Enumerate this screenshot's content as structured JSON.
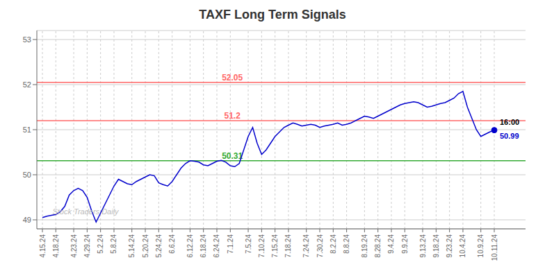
{
  "chart_data": {
    "type": "line",
    "title": "TAXF Long Term Signals",
    "categories": [
      "4.15.24",
      null,
      null,
      "4.18.24",
      null,
      null,
      null,
      "4.23.24",
      null,
      null,
      "4.29.24",
      null,
      null,
      "5.2.24",
      null,
      null,
      "5.8.24",
      null,
      null,
      null,
      "5.14.24",
      null,
      null,
      "5.20.24",
      null,
      null,
      "5.24.24",
      null,
      null,
      "6.6.24",
      null,
      null,
      null,
      "6.12.24",
      null,
      null,
      "6.18.24",
      null,
      null,
      "6.24.24",
      null,
      null,
      "7.1.24",
      null,
      null,
      null,
      "7.5.24",
      null,
      null,
      "7.10.24",
      null,
      null,
      "7.15.24",
      null,
      null,
      "7.18.24",
      null,
      null,
      null,
      "7.24.24",
      null,
      null,
      "7.30.24",
      null,
      null,
      "8.2.24",
      null,
      null,
      "8.8.24",
      null,
      null,
      null,
      "8.19.24",
      null,
      null,
      "8.28.24",
      null,
      null,
      "9.4.24",
      null,
      null,
      "9.9.24",
      null,
      null,
      null,
      "9.13.24",
      null,
      null,
      "9.18.24",
      null,
      null,
      "9.23.24",
      null,
      null,
      "10.4.24",
      null,
      null,
      null,
      "10.9.24",
      null,
      null,
      "10.11.24"
    ],
    "series": [
      {
        "type": "line",
        "color": "#0000cc",
        "line_style": "solid",
        "values": [
          49.05,
          49.08,
          49.1,
          49.12,
          49.18,
          49.3,
          49.55,
          49.65,
          49.7,
          49.65,
          49.5,
          49.2,
          48.95,
          49.15,
          49.35,
          49.55,
          49.75,
          49.9,
          49.85,
          49.8,
          49.78,
          49.85,
          49.9,
          49.95,
          50.0,
          49.98,
          49.82,
          49.78,
          49.75,
          49.85,
          50.0,
          50.15,
          50.25,
          50.31,
          50.3,
          50.28,
          50.22,
          50.2,
          50.25,
          50.3,
          50.32,
          50.28,
          50.2,
          50.18,
          50.25,
          50.55,
          50.85,
          51.05,
          50.7,
          50.45,
          50.55,
          50.7,
          50.85,
          50.95,
          51.05,
          51.1,
          51.15,
          51.12,
          51.08,
          51.1,
          51.12,
          51.1,
          51.05,
          51.08,
          51.1,
          51.12,
          51.15,
          51.1,
          51.12,
          51.15,
          51.2,
          51.25,
          51.3,
          51.28,
          51.25,
          51.3,
          51.35,
          51.4,
          51.45,
          51.5,
          51.55,
          51.58,
          51.6,
          51.62,
          51.6,
          51.55,
          51.5,
          51.52,
          51.55,
          51.58,
          51.6,
          51.65,
          51.7,
          51.8,
          51.85,
          51.5,
          51.25,
          51.0,
          50.85,
          50.9,
          50.95,
          50.99
        ]
      },
      {
        "type": "scatter",
        "color": "#0000cc",
        "marker": "o",
        "values": [
          null,
          null,
          null,
          null,
          null,
          null,
          null,
          null,
          null,
          null,
          null,
          null,
          null,
          null,
          null,
          null,
          null,
          null,
          null,
          null,
          null,
          null,
          null,
          null,
          null,
          null,
          null,
          null,
          null,
          null,
          null,
          null,
          null,
          null,
          null,
          null,
          null,
          null,
          null,
          null,
          null,
          null,
          null,
          null,
          null,
          null,
          null,
          null,
          null,
          null,
          null,
          null,
          null,
          null,
          null,
          null,
          null,
          null,
          null,
          null,
          null,
          null,
          null,
          null,
          null,
          null,
          null,
          null,
          null,
          null,
          null,
          null,
          null,
          null,
          null,
          null,
          null,
          null,
          null,
          null,
          null,
          null,
          null,
          null,
          null,
          null,
          null,
          null,
          null,
          null,
          null,
          null,
          null,
          null,
          null,
          null,
          null,
          null,
          null,
          null,
          null,
          50.99
        ]
      }
    ],
    "ylim": [
      48.8,
      53.2
    ],
    "yticks": [
      49,
      50,
      51,
      52,
      53
    ],
    "grid": true,
    "hlines": [
      {
        "value": 52.05,
        "color": "#ff6666"
      },
      {
        "value": 51.2,
        "color": "#ff6666"
      },
      {
        "value": 50.31,
        "color": "#33aa33"
      }
    ],
    "annotations": [
      {
        "text": "Stock Traders Daily",
        "x": 1,
        "y": 49.12,
        "color": "#bbbbbb"
      },
      {
        "text": "16:00",
        "x": 101,
        "y": 51.11,
        "color": "#000000"
      },
      {
        "text": "50.99",
        "x": 101,
        "y": 50.8,
        "color": "#0000cc"
      }
    ]
  }
}
